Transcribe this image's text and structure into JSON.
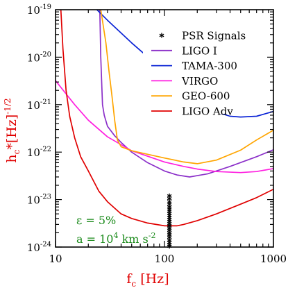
{
  "chart_data": {
    "type": "line",
    "xscale": "log",
    "yscale": "log",
    "xlim": [
      10,
      1000
    ],
    "ylim": [
      1e-24,
      1e-19
    ],
    "xlabel": {
      "base": "f",
      "sub": "c",
      "unit": " [Hz]"
    },
    "ylabel": {
      "base": "h",
      "sub": "c",
      "star": "*",
      "unit": "[Hz]",
      "sup": "-1/2"
    },
    "x_ticks": [
      {
        "value": 10,
        "label": "10"
      },
      {
        "value": 100,
        "label": "100"
      },
      {
        "value": 1000,
        "label": "1000"
      }
    ],
    "y_ticks": [
      {
        "value": 1e-24,
        "base": "10",
        "exp": "-24"
      },
      {
        "value": 1e-23,
        "base": "10",
        "exp": "-23"
      },
      {
        "value": 1e-22,
        "base": "10",
        "exp": "-22"
      },
      {
        "value": 1e-21,
        "base": "10",
        "exp": "-21"
      },
      {
        "value": 1e-20,
        "base": "10",
        "exp": "-20"
      },
      {
        "value": 1e-19,
        "base": "10",
        "exp": "-19"
      }
    ],
    "grid": false,
    "legend": {
      "position": "top-right",
      "entries": [
        {
          "label": "PSR Signals",
          "color": "#000000",
          "marker": "asterisk"
        },
        {
          "label": "LIGO I",
          "color": "#8b2fc9"
        },
        {
          "label": "TAMA-300",
          "color": "#0a23d6"
        },
        {
          "label": "VIRGO",
          "color": "#ff1fe0"
        },
        {
          "label": "GEO-600",
          "color": "#ffa500"
        },
        {
          "label": "LIGO Adv",
          "color": "#e00000"
        }
      ]
    },
    "series": [
      {
        "name": "LIGO I",
        "color": "#8b2fc9",
        "x": [
          25.5,
          26,
          27,
          28,
          30,
          35,
          40,
          50,
          70,
          100,
          130,
          170,
          250,
          400,
          700,
          1000
        ],
        "y": [
          1e-19,
          1e-20,
          1e-21,
          6e-22,
          3.5e-22,
          2.2e-22,
          1.6e-22,
          1e-22,
          6e-23,
          4e-23,
          3.3e-23,
          3e-23,
          3.5e-23,
          5e-23,
          8e-23,
          1.12e-22
        ]
      },
      {
        "name": "TAMA-300",
        "color": "#0a23d6",
        "x": [
          24,
          30,
          50,
          100,
          200,
          300,
          400,
          500,
          700,
          1000
        ],
        "y": [
          1e-19,
          6e-20,
          2e-20,
          5e-21,
          1.3e-21,
          7e-22,
          5.7e-22,
          5.5e-22,
          5.7e-22,
          7.2e-22
        ]
      },
      {
        "name": "VIRGO",
        "color": "#ff1fe0",
        "x": [
          10,
          15,
          20,
          30,
          50,
          100,
          150,
          200,
          300,
          500,
          700,
          1000
        ],
        "y": [
          3.2e-21,
          1e-21,
          4.7e-22,
          2.1e-22,
          1.07e-22,
          6.2e-23,
          5e-23,
          4.4e-23,
          3.9e-23,
          3.7e-23,
          3.9e-23,
          4.5e-23
        ]
      },
      {
        "name": "GEO-600",
        "color": "#ffa500",
        "x": [
          26,
          29,
          31,
          33,
          35,
          37,
          40,
          50,
          70,
          100,
          150,
          200,
          300,
          500,
          700,
          1000
        ],
        "y": [
          1e-19,
          2e-20,
          5e-21,
          1.5e-21,
          4.5e-22,
          1.8e-22,
          1.3e-22,
          1.07e-22,
          9e-23,
          7.5e-23,
          6.2e-23,
          5.7e-23,
          6.8e-23,
          1.1e-22,
          1.8e-22,
          2.9e-22
        ]
      },
      {
        "name": "LIGO Adv",
        "color": "#e00000",
        "x": [
          11.2,
          11.7,
          12.5,
          13.5,
          15,
          17,
          20,
          25,
          30,
          40,
          50,
          70,
          100,
          130,
          150,
          200,
          300,
          500,
          700,
          1000
        ],
        "y": [
          1e-19,
          1.5e-20,
          2e-21,
          5.6e-22,
          2e-22,
          8e-23,
          4e-23,
          1.5e-23,
          9e-24,
          5e-24,
          4e-24,
          3.2e-24,
          2.8e-24,
          2.8e-24,
          3e-24,
          3.6e-24,
          5e-24,
          8e-24,
          1.1e-23,
          1.65e-23
        ]
      }
    ],
    "scatter": {
      "name": "PSR Signals",
      "color": "#000000",
      "marker": "asterisk",
      "x": [
        111,
        111,
        111,
        111,
        111,
        111,
        111,
        111,
        111,
        111,
        111,
        111,
        111,
        111,
        111,
        111,
        111,
        111,
        111,
        111,
        111,
        111,
        111
      ],
      "y": [
        1.2e-23,
        1.05e-23,
        9e-24,
        8e-24,
        7e-24,
        6.3e-24,
        5.7e-24,
        5.1e-24,
        4.6e-24,
        4.2e-24,
        3.8e-24,
        3.45e-24,
        3.1e-24,
        2.8e-24,
        2.5e-24,
        2.25e-24,
        2e-24,
        1.8e-24,
        1.6e-24,
        1.4e-24,
        1.25e-24,
        1.12e-24,
        1.04e-24
      ]
    },
    "annotations": {
      "epsilon": {
        "text": "ε = 5%"
      },
      "accel": {
        "text_before": "a = 10",
        "sup": "4",
        "text_after": " km s",
        "sup2": "-2"
      }
    }
  }
}
